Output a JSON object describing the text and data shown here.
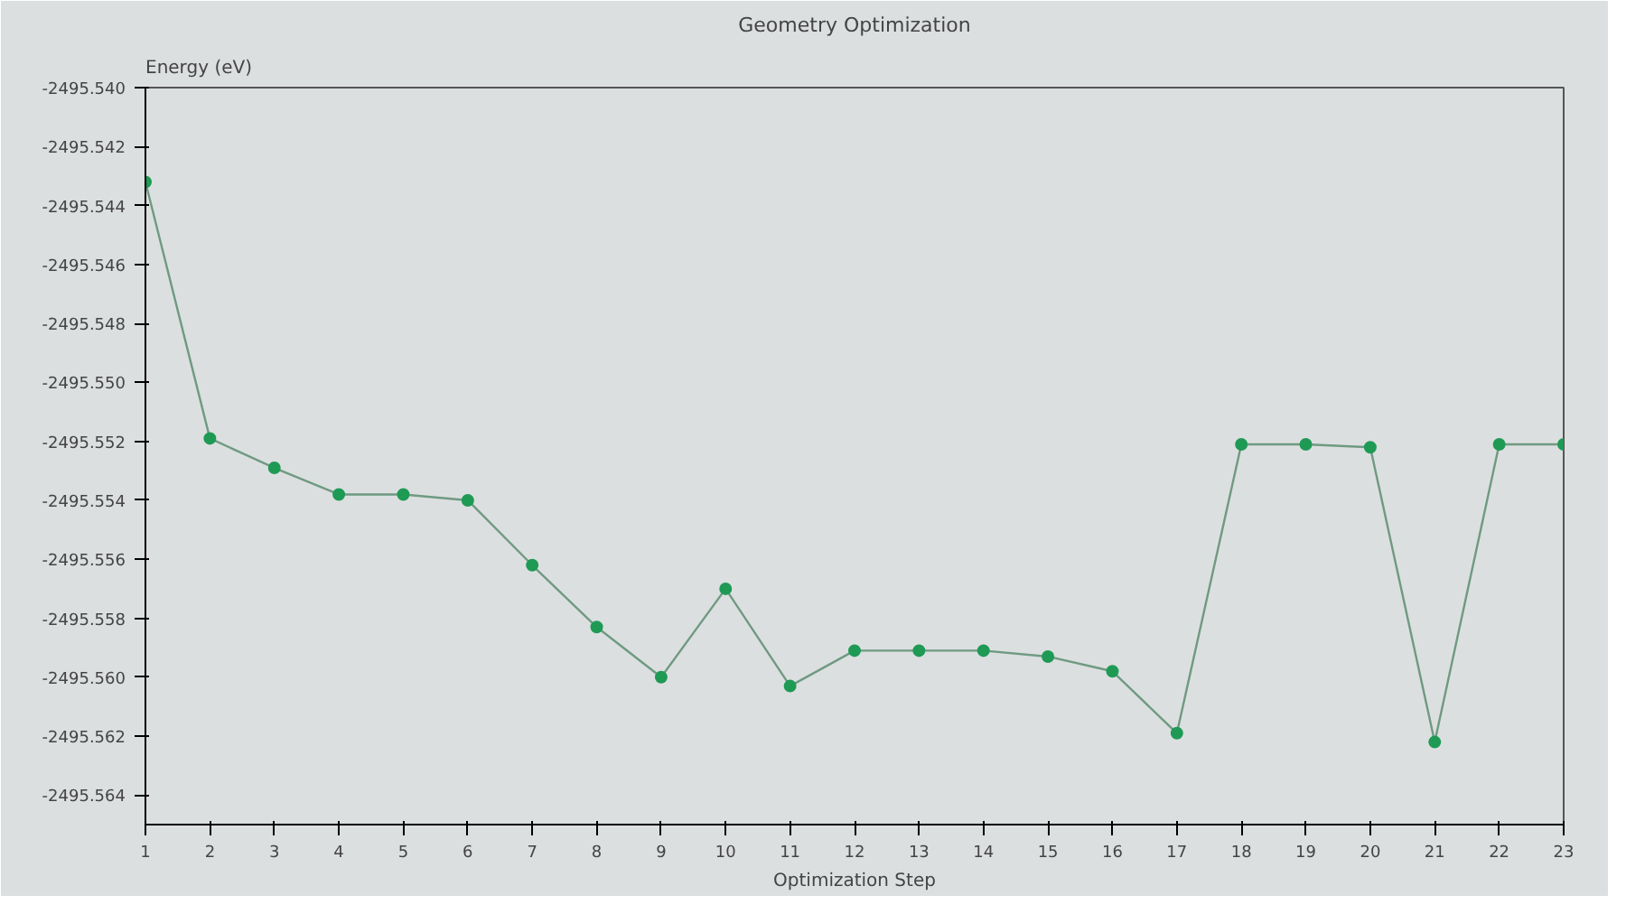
{
  "chart_data": {
    "type": "line",
    "title": "Geometry Optimization",
    "xlabel": "Optimization Step",
    "ylabel": "Energy (eV)",
    "x": [
      1,
      2,
      3,
      4,
      5,
      6,
      7,
      8,
      9,
      10,
      11,
      12,
      13,
      14,
      15,
      16,
      17,
      18,
      19,
      20,
      21,
      22,
      23
    ],
    "series": [
      {
        "color": "#1f9a55",
        "values": [
          -2495.5432,
          -2495.5519,
          -2495.5529,
          -2495.5538,
          -2495.5538,
          -2495.554,
          -2495.5562,
          -2495.5583,
          -2495.56,
          -2495.557,
          -2495.5603,
          -2495.5591,
          -2495.5591,
          -2495.5591,
          -2495.5593,
          -2495.5598,
          -2495.5619,
          -2495.5521,
          -2495.5521,
          -2495.5522,
          -2495.5622,
          -2495.5521,
          -2495.5521
        ]
      }
    ],
    "xlim": [
      1,
      23
    ],
    "xticks": [
      1,
      2,
      3,
      4,
      5,
      6,
      7,
      8,
      9,
      10,
      11,
      12,
      13,
      14,
      15,
      16,
      17,
      18,
      19,
      20,
      21,
      22,
      23
    ],
    "ylim": [
      -2495.565,
      -2495.54
    ],
    "yticks": [
      {
        "value": -2495.54,
        "label": "-2495.540"
      },
      {
        "value": -2495.542,
        "label": "-2495.542"
      },
      {
        "value": -2495.544,
        "label": "-2495.544"
      },
      {
        "value": -2495.546,
        "label": "-2495.546"
      },
      {
        "value": -2495.548,
        "label": "-2495.548"
      },
      {
        "value": -2495.55,
        "label": "-2495.550"
      },
      {
        "value": -2495.552,
        "label": "-2495.552"
      },
      {
        "value": -2495.554,
        "label": "-2495.554"
      },
      {
        "value": -2495.556,
        "label": "-2495.556"
      },
      {
        "value": -2495.558,
        "label": "-2495.558"
      },
      {
        "value": -2495.56,
        "label": "-2495.560"
      },
      {
        "value": -2495.562,
        "label": "-2495.562"
      },
      {
        "value": -2495.564,
        "label": "-2495.564"
      }
    ],
    "grid": false,
    "marker": "circle",
    "line_style": "solid"
  }
}
